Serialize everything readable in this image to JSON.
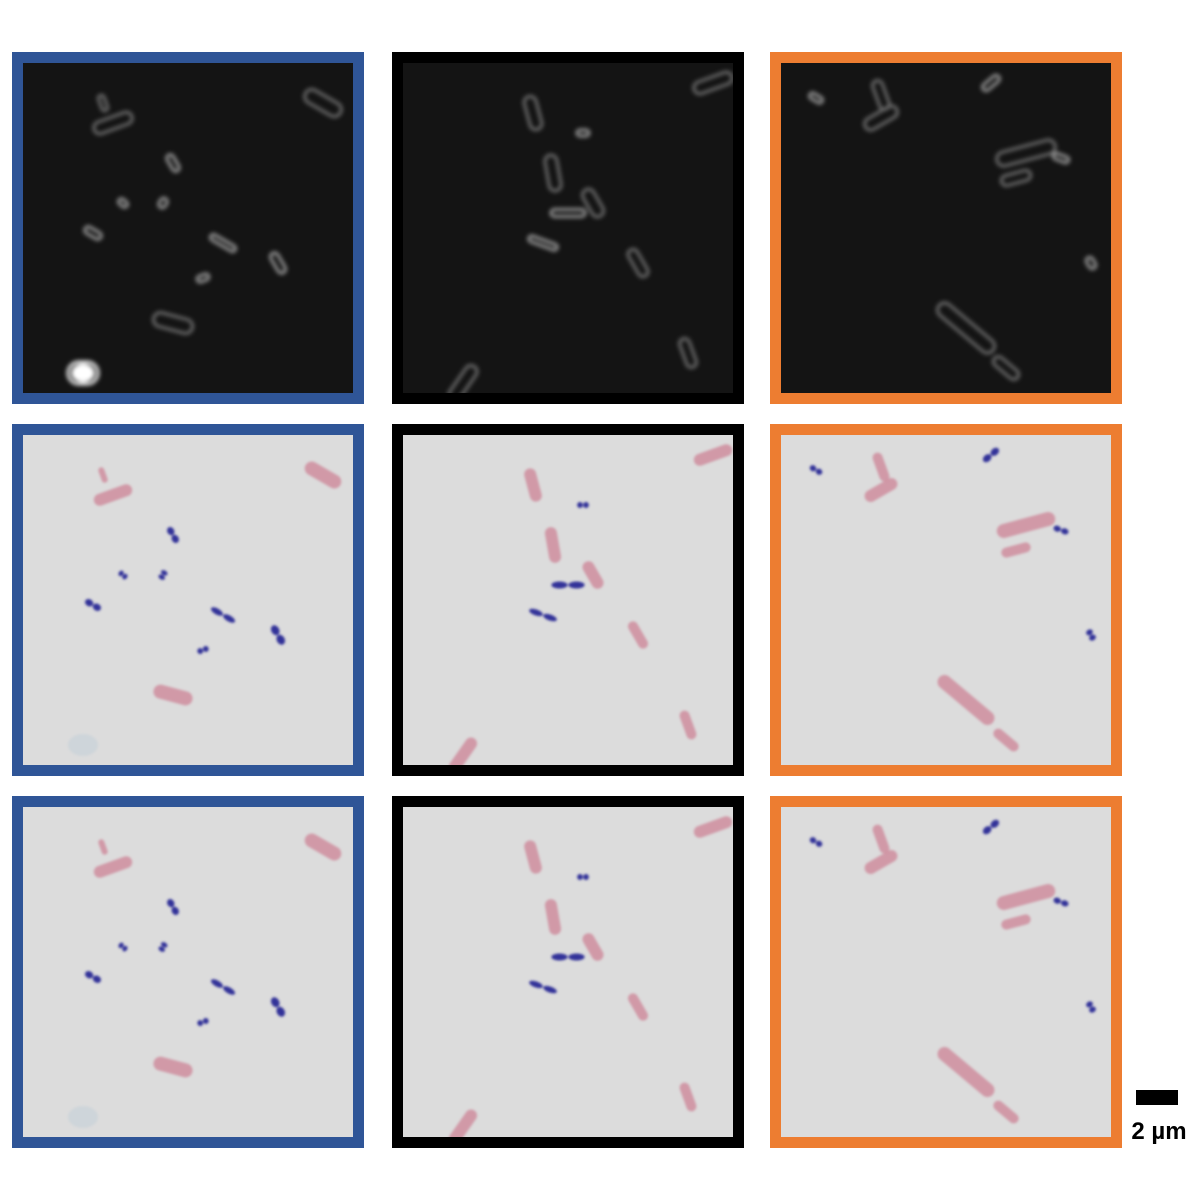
{
  "colors": {
    "frame_blue": "#2f5597",
    "frame_black": "#000000",
    "frame_orange": "#ed7d31",
    "fluorescence_bg": "#141414",
    "brightfield_bg": "#dcdcdc",
    "stain_pink": "#cf8d9d",
    "stain_blue": "#333399"
  },
  "grid": {
    "rows": [
      "fluorescence",
      "stained-brightfield",
      "stained-brightfield-repeat"
    ],
    "columns": [
      "blue-frame",
      "black-frame",
      "orange-frame"
    ]
  },
  "scale_bar": {
    "label": "2 µm"
  }
}
